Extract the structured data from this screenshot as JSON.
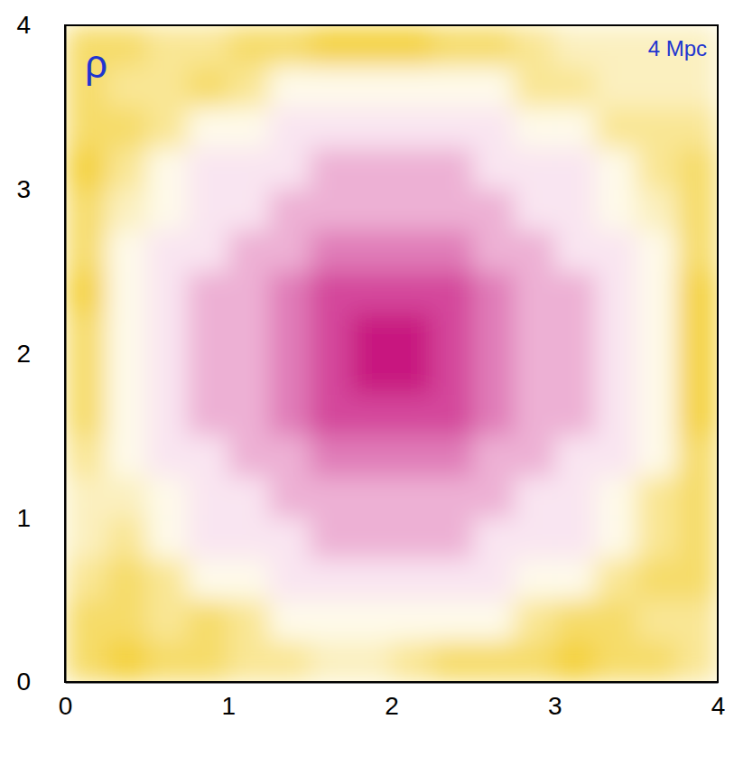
{
  "chart_data": {
    "type": "heatmap",
    "annotations": [
      "ρ",
      "4 Mpc"
    ],
    "xlim": [
      0,
      4
    ],
    "ylim": [
      0,
      4
    ],
    "xticks": [
      0,
      1,
      2,
      3,
      4
    ],
    "yticks": [
      0,
      1,
      2,
      3,
      4
    ],
    "cells": [
      [
        2,
        2,
        3,
        3,
        2,
        2,
        1,
        1,
        1,
        2,
        2,
        3,
        4,
        4,
        4,
        4
      ],
      [
        2,
        3,
        3,
        2,
        3,
        5,
        5,
        5,
        5,
        5,
        5,
        3,
        3,
        4,
        4,
        4
      ],
      [
        2,
        2,
        3,
        5,
        5,
        6,
        6,
        6,
        6,
        6,
        6,
        5,
        5,
        3,
        3,
        3
      ],
      [
        1,
        3,
        5,
        6,
        6,
        6,
        7,
        7,
        7,
        7,
        6,
        6,
        6,
        5,
        3,
        2
      ],
      [
        2,
        4,
        5,
        6,
        6,
        7,
        7,
        7,
        7,
        7,
        7,
        6,
        6,
        5,
        4,
        2
      ],
      [
        2,
        5,
        6,
        6,
        7,
        7,
        8,
        8,
        8,
        8,
        7,
        7,
        6,
        6,
        5,
        2
      ],
      [
        1,
        5,
        6,
        7,
        7,
        8,
        9,
        9,
        9,
        9,
        8,
        7,
        7,
        6,
        5,
        1
      ],
      [
        2,
        5,
        6,
        7,
        7,
        8,
        9,
        10,
        10,
        9,
        8,
        7,
        7,
        6,
        5,
        1
      ],
      [
        2,
        5,
        6,
        7,
        7,
        8,
        9,
        10,
        10,
        9,
        8,
        7,
        7,
        6,
        5,
        1
      ],
      [
        2,
        5,
        6,
        7,
        7,
        8,
        9,
        9,
        9,
        9,
        8,
        7,
        7,
        6,
        5,
        1
      ],
      [
        3,
        5,
        6,
        6,
        7,
        7,
        8,
        8,
        8,
        8,
        7,
        7,
        6,
        6,
        5,
        2
      ],
      [
        4,
        4,
        5,
        6,
        6,
        7,
        7,
        7,
        7,
        7,
        7,
        6,
        6,
        5,
        3,
        2
      ],
      [
        4,
        3,
        5,
        6,
        6,
        6,
        7,
        7,
        7,
        7,
        6,
        6,
        6,
        5,
        3,
        2
      ],
      [
        3,
        2,
        3,
        5,
        5,
        6,
        6,
        6,
        6,
        6,
        6,
        5,
        5,
        3,
        2,
        2
      ],
      [
        2,
        2,
        3,
        2,
        3,
        5,
        5,
        5,
        5,
        5,
        5,
        3,
        2,
        2,
        3,
        3
      ],
      [
        2,
        1,
        2,
        2,
        3,
        3,
        4,
        4,
        3,
        2,
        2,
        2,
        1,
        2,
        2,
        3
      ]
    ]
  }
}
